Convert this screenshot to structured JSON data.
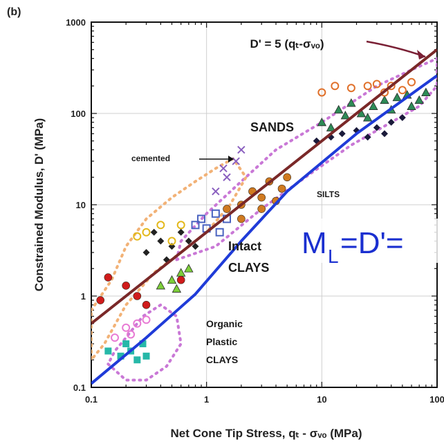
{
  "chart_data": {
    "type": "scatter",
    "panel_label": "(b)",
    "xlabel": "Net Cone Tip Stress, qₜ - σᵥₒ (MPa)",
    "ylabel": "Constrained Modulus, D' (MPa)",
    "x_scale": "log",
    "y_scale": "log",
    "xlim": [
      0.1,
      100
    ],
    "ylim": [
      0.1,
      1000
    ],
    "x_ticks": [
      {
        "value": 0.1,
        "label": "0.1"
      },
      {
        "value": 1,
        "label": "1"
      },
      {
        "value": 10,
        "label": "10"
      },
      {
        "value": 100,
        "label": "100"
      }
    ],
    "y_ticks": [
      {
        "value": 0.1,
        "label": "0.1"
      },
      {
        "value": 1,
        "label": "1"
      },
      {
        "value": 10,
        "label": "10"
      },
      {
        "value": 100,
        "label": "100"
      },
      {
        "value": 1000,
        "label": "1000"
      }
    ],
    "grid": true,
    "annotations": {
      "upper_line_eq": "D' = 5 (qₜ-σᵥₒ)",
      "cemented": "cemented",
      "sands": "SANDS",
      "silts": "SILTS",
      "intact_1": "Intact",
      "intact_2": "CLAYS",
      "organic_1": "Organic",
      "organic_2": "Plastic",
      "organic_3": "CLAYS",
      "overlay_eq": "M",
      "overlay_sub": "L",
      "overlay_rest": "=D'="
    },
    "series": [
      {
        "line": "upper",
        "color": "#7a2828",
        "points": [
          [
            0.1,
            0.5
          ],
          [
            100,
            500
          ]
        ]
      },
      {
        "line": "lower",
        "color": "#1f3bd8",
        "points": [
          [
            0.1,
            0.11
          ],
          [
            0.3,
            0.35
          ],
          [
            0.8,
            1.05
          ],
          [
            2,
            4
          ],
          [
            5,
            14
          ],
          [
            20,
            60
          ],
          [
            100,
            260
          ]
        ]
      }
    ],
    "groups": [
      {
        "name": "sands",
        "color": "#2e8b57",
        "marker": "triangle",
        "points": [
          [
            10,
            80
          ],
          [
            14,
            110
          ],
          [
            18,
            130
          ],
          [
            22,
            100
          ],
          [
            28,
            120
          ],
          [
            35,
            140
          ],
          [
            45,
            150
          ],
          [
            55,
            160
          ],
          [
            70,
            140
          ],
          [
            80,
            170
          ],
          [
            12,
            70
          ],
          [
            25,
            90
          ],
          [
            40,
            110
          ],
          [
            60,
            120
          ],
          [
            16,
            95
          ]
        ]
      },
      {
        "name": "sands-dark",
        "color": "#1a1a3a",
        "marker": "diamond",
        "points": [
          [
            9,
            50
          ],
          [
            12,
            55
          ],
          [
            15,
            60
          ],
          [
            20,
            65
          ],
          [
            30,
            70
          ],
          [
            40,
            80
          ],
          [
            25,
            55
          ],
          [
            50,
            90
          ],
          [
            35,
            60
          ]
        ]
      },
      {
        "name": "sands-orange",
        "color": "#e0702a",
        "marker": "circle-open",
        "points": [
          [
            10,
            170
          ],
          [
            13,
            200
          ],
          [
            18,
            190
          ],
          [
            25,
            200
          ],
          [
            30,
            210
          ],
          [
            40,
            200
          ],
          [
            50,
            180
          ],
          [
            60,
            220
          ],
          [
            35,
            170
          ]
        ]
      },
      {
        "name": "silts",
        "color": "#d07a20",
        "marker": "circle",
        "points": [
          [
            2,
            10
          ],
          [
            3,
            12
          ],
          [
            4,
            11
          ],
          [
            2.5,
            14
          ],
          [
            3.5,
            18
          ],
          [
            5,
            20
          ],
          [
            1.5,
            9
          ],
          [
            4.5,
            15
          ],
          [
            3,
            9
          ],
          [
            2,
            7
          ]
        ]
      },
      {
        "name": "cemented",
        "color": "#8a5fbf",
        "marker": "cross",
        "points": [
          [
            1.2,
            14
          ],
          [
            1.5,
            20
          ],
          [
            1.8,
            30
          ],
          [
            2,
            40
          ],
          [
            1.4,
            25
          ]
        ]
      },
      {
        "name": "clays-dark",
        "color": "#222222",
        "marker": "diamond",
        "points": [
          [
            0.3,
            3
          ],
          [
            0.4,
            4
          ],
          [
            0.5,
            3.5
          ],
          [
            0.6,
            5
          ],
          [
            0.7,
            4
          ],
          [
            0.8,
            3.5
          ],
          [
            0.35,
            5
          ],
          [
            0.45,
            2.5
          ]
        ]
      },
      {
        "name": "clays-tri",
        "color": "#7dcf3a",
        "marker": "triangle",
        "points": [
          [
            0.5,
            1.5
          ],
          [
            0.6,
            1.8
          ],
          [
            0.7,
            2
          ],
          [
            0.4,
            1.3
          ],
          [
            0.55,
            1.2
          ]
        ]
      },
      {
        "name": "clays-red",
        "color": "#d01b1b",
        "marker": "circle",
        "points": [
          [
            0.14,
            1.6
          ],
          [
            0.2,
            1.3
          ],
          [
            0.25,
            1
          ],
          [
            0.3,
            0.8
          ],
          [
            0.6,
            1.5
          ],
          [
            0.12,
            0.9
          ]
        ]
      },
      {
        "name": "organic",
        "color": "#26b8a8",
        "marker": "square",
        "points": [
          [
            0.14,
            0.25
          ],
          [
            0.18,
            0.22
          ],
          [
            0.22,
            0.25
          ],
          [
            0.28,
            0.3
          ],
          [
            0.3,
            0.22
          ],
          [
            0.2,
            0.3
          ],
          [
            0.25,
            0.2
          ]
        ]
      },
      {
        "name": "organic-pink",
        "color": "#e87ad4",
        "marker": "circle-open",
        "points": [
          [
            0.16,
            0.35
          ],
          [
            0.2,
            0.45
          ],
          [
            0.25,
            0.5
          ],
          [
            0.3,
            0.55
          ],
          [
            0.22,
            0.38
          ]
        ]
      },
      {
        "name": "clays-blue",
        "color": "#4a63c0",
        "marker": "square-open",
        "points": [
          [
            0.8,
            6
          ],
          [
            0.9,
            7
          ],
          [
            1.2,
            8
          ],
          [
            1.5,
            7
          ],
          [
            1.3,
            5
          ],
          [
            1,
            5.5
          ]
        ]
      },
      {
        "name": "clays-yellow",
        "color": "#e3b81a",
        "marker": "circle-open",
        "points": [
          [
            0.3,
            5
          ],
          [
            0.4,
            6
          ],
          [
            0.5,
            4
          ],
          [
            0.25,
            4.5
          ],
          [
            0.6,
            6
          ]
        ]
      }
    ],
    "envelopes": [
      {
        "name": "pink-dotted-sands",
        "color": "#c978d6",
        "points": [
          [
            0.55,
            2.5
          ],
          [
            1.2,
            3.5
          ],
          [
            3,
            9
          ],
          [
            8,
            22
          ],
          [
            18,
            45
          ],
          [
            40,
            80
          ],
          [
            70,
            120
          ],
          [
            100,
            200
          ],
          [
            100,
            400
          ],
          [
            60,
            300
          ],
          [
            30,
            200
          ],
          [
            10,
            80
          ],
          [
            4,
            40
          ],
          [
            2,
            18
          ],
          [
            1,
            8
          ],
          [
            0.6,
            4
          ]
        ]
      },
      {
        "name": "orange-dotted-upper",
        "color": "#f2b277",
        "points": [
          [
            0.1,
            0.7
          ],
          [
            0.15,
            1.5
          ],
          [
            0.2,
            3.5
          ],
          [
            0.3,
            7
          ],
          [
            0.5,
            12
          ],
          [
            0.8,
            18
          ],
          [
            1.2,
            25
          ],
          [
            1.7,
            32
          ],
          [
            2.2,
            20
          ],
          [
            1.6,
            10
          ],
          [
            1,
            5
          ],
          [
            0.6,
            3
          ],
          [
            0.35,
            1.8
          ],
          [
            0.2,
            0.8
          ],
          [
            0.13,
            0.3
          ],
          [
            0.1,
            0.2
          ]
        ]
      },
      {
        "name": "pink-dotted-organic",
        "color": "#c978d6",
        "points": [
          [
            0.14,
            0.18
          ],
          [
            0.2,
            0.12
          ],
          [
            0.3,
            0.12
          ],
          [
            0.45,
            0.17
          ],
          [
            0.6,
            0.3
          ],
          [
            0.55,
            0.6
          ],
          [
            0.4,
            0.8
          ],
          [
            0.28,
            0.6
          ],
          [
            0.2,
            0.35
          ],
          [
            0.16,
            0.25
          ]
        ]
      }
    ]
  }
}
